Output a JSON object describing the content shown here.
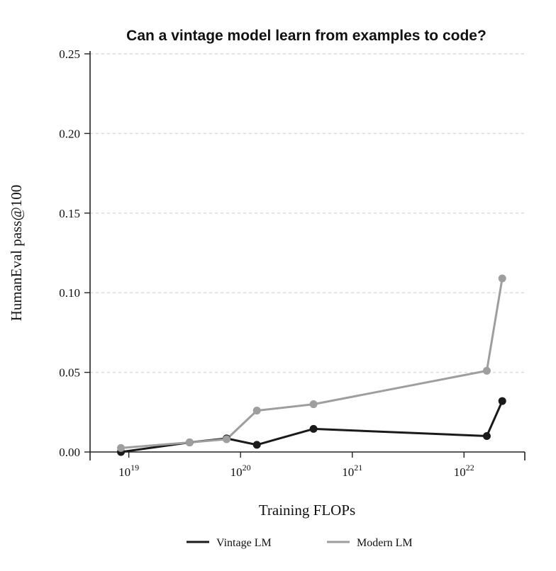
{
  "chart_data": {
    "type": "line",
    "title": "Can a vintage model learn from examples to code?",
    "xlabel": "Training FLOPs",
    "ylabel": "HumanEval pass@100",
    "x_scale": "log",
    "xlim": [
      4.5e+18,
      3.5e+22
    ],
    "ylim": [
      0,
      0.25
    ],
    "yticks": [
      0.0,
      0.05,
      0.1,
      0.15,
      0.2,
      0.25
    ],
    "ytick_labels": [
      "0.00",
      "0.05",
      "0.10",
      "0.15",
      "0.20",
      "0.25"
    ],
    "xticks": [
      1e+19,
      1e+20,
      1e+21,
      1e+22
    ],
    "xtick_labels": [
      {
        "base": "10",
        "exp": "19"
      },
      {
        "base": "10",
        "exp": "20"
      },
      {
        "base": "10",
        "exp": "21"
      },
      {
        "base": "10",
        "exp": "22"
      }
    ],
    "grid": "horizontal dashed",
    "legend_position": "bottom",
    "series": [
      {
        "name": "Vintage LM",
        "color": "#1a1a1a",
        "x": [
          8.5e+18,
          3.5e+19,
          7.5e+19,
          1.4e+20,
          4.5e+20,
          1.6e+22,
          2.2e+22
        ],
        "values": [
          0.0,
          0.006,
          0.0085,
          0.0045,
          0.0145,
          0.01,
          0.032
        ]
      },
      {
        "name": "Modern LM",
        "color": "#9e9e9e",
        "x": [
          8.5e+18,
          3.5e+19,
          7.5e+19,
          1.4e+20,
          4.5e+20,
          1.6e+22,
          2.2e+22
        ],
        "values": [
          0.0025,
          0.006,
          0.008,
          0.026,
          0.03,
          0.051,
          0.109
        ]
      }
    ]
  }
}
